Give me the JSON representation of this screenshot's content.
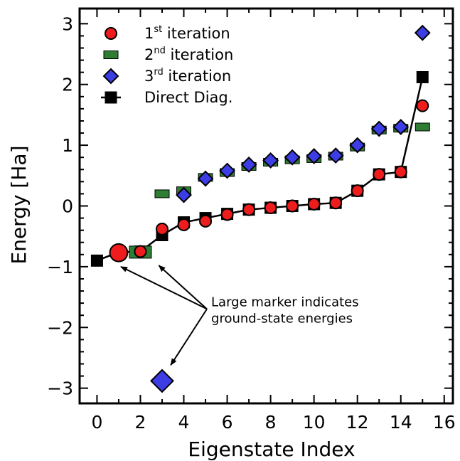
{
  "chart_data": {
    "type": "scatter",
    "title": "",
    "xlabel": "Eigenstate Index",
    "ylabel": "Energy [Ha]",
    "xlim": [
      -0.8,
      16.4
    ],
    "ylim": [
      -3.25,
      3.25
    ],
    "xticks": [
      "0",
      "2",
      "4",
      "6",
      "8",
      "10",
      "12",
      "14",
      "16"
    ],
    "yticks": [
      "−3",
      "−2",
      "−1",
      "0",
      "1",
      "2",
      "3"
    ],
    "legend_position": "top-left",
    "series": [
      {
        "key": "direct",
        "name": "Direct Diag.",
        "marker": "square",
        "color": "#000000",
        "line": true,
        "x": [
          0,
          1,
          2,
          3,
          4,
          5,
          6,
          7,
          8,
          9,
          10,
          11,
          12,
          13,
          14,
          15
        ],
        "y": [
          -0.9,
          -0.76,
          -0.75,
          -0.48,
          -0.27,
          -0.2,
          -0.13,
          -0.06,
          -0.03,
          0.0,
          0.03,
          0.05,
          0.25,
          0.52,
          0.56,
          2.12
        ]
      },
      {
        "key": "iter2",
        "name_base": "2",
        "name_sup": "nd",
        "name_rest": " iteration",
        "marker": "rect",
        "color": "#2e7d32",
        "x": [
          1,
          2,
          3,
          4,
          5,
          6,
          7,
          8,
          9,
          10,
          11,
          12,
          13,
          14,
          15
        ],
        "y": [
          -0.76,
          -0.76,
          0.2,
          0.25,
          0.47,
          0.55,
          0.65,
          0.72,
          0.76,
          0.78,
          0.82,
          0.97,
          1.25,
          1.28,
          1.3
        ]
      },
      {
        "key": "iter3",
        "name_base": "3",
        "name_sup": "rd",
        "name_rest": " iteration",
        "marker": "diamond",
        "color": "#3d3de6",
        "x": [
          3,
          4,
          5,
          6,
          7,
          8,
          9,
          10,
          11,
          12,
          13,
          14,
          15
        ],
        "y": [
          -2.88,
          0.18,
          0.45,
          0.58,
          0.68,
          0.75,
          0.8,
          0.82,
          0.83,
          1.0,
          1.27,
          1.3,
          2.85
        ]
      },
      {
        "key": "iter1",
        "name_base": "1",
        "name_sup": "st",
        "name_rest": " iteration",
        "marker": "circle",
        "color": "#ee1c1c",
        "x": [
          1,
          2,
          3,
          4,
          5,
          6,
          7,
          8,
          9,
          10,
          11,
          12,
          13,
          14,
          15
        ],
        "y": [
          -0.77,
          -0.75,
          -0.38,
          -0.31,
          -0.25,
          -0.14,
          -0.06,
          -0.03,
          0.0,
          0.03,
          0.05,
          0.25,
          0.52,
          0.56,
          1.65
        ]
      }
    ],
    "ground_state_points": [
      {
        "series": "iter1",
        "x": 1,
        "y": -0.77
      },
      {
        "series": "iter2",
        "x": 2,
        "y": -0.76
      },
      {
        "series": "iter3",
        "x": 3,
        "y": -2.88
      }
    ],
    "annotation": {
      "line1": "Large marker indicates",
      "line2": "ground-state energies",
      "anchor_x": 5.0,
      "anchor_y": -1.72,
      "arrow_targets": [
        {
          "x": 1.1,
          "y": -1.0
        },
        {
          "x": 2.85,
          "y": -0.98
        },
        {
          "x": 3.4,
          "y": -2.62
        }
      ]
    }
  }
}
